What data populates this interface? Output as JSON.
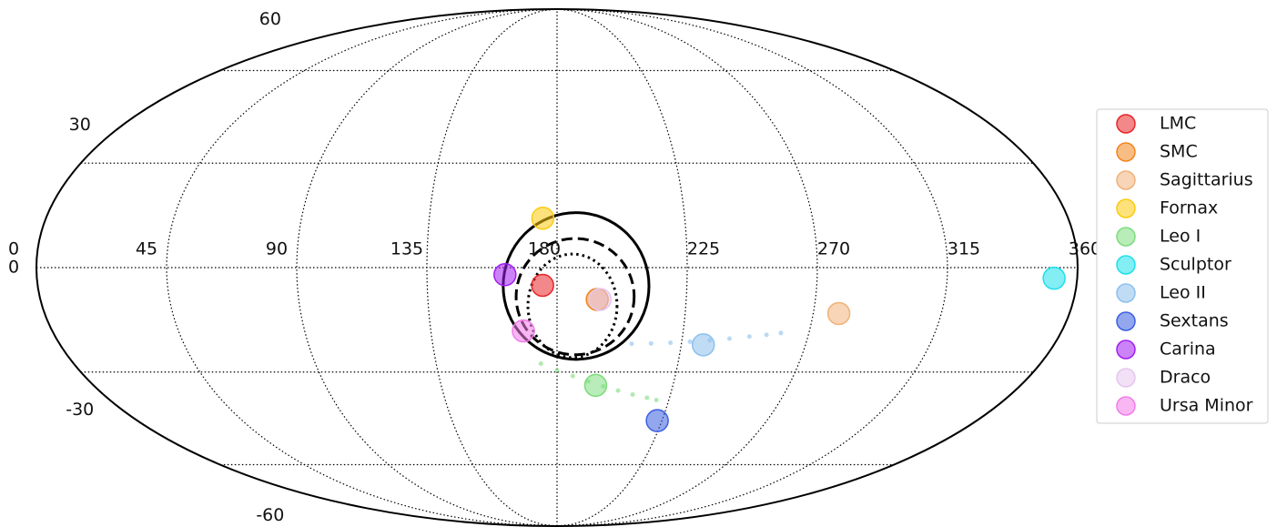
{
  "chart_data": {
    "type": "scatter",
    "projection": "mollweide",
    "xlim": [
      0,
      360
    ],
    "ylim": [
      -90,
      90
    ],
    "xticks": [
      0,
      45,
      90,
      135,
      180,
      225,
      270,
      315,
      360
    ],
    "yticks": [
      -60,
      -30,
      0,
      30,
      60
    ],
    "grid": true,
    "legend": "right",
    "series": [
      {
        "name": "LMC",
        "color": "#e8262a",
        "x": [
          175
        ],
        "values": [
          -5
        ]
      },
      {
        "name": "SMC",
        "color": "#f0861e",
        "x": [
          194
        ],
        "values": [
          -9
        ]
      },
      {
        "name": "Sagittarius",
        "color": "#f0b27a",
        "x": [
          279
        ],
        "values": [
          -13
        ]
      },
      {
        "name": "Fornax",
        "color": "#fcca10",
        "x": [
          175
        ],
        "values": [
          14
        ]
      },
      {
        "name": "Leo I",
        "color": "#7ddc7d",
        "x": [
          195
        ],
        "values": [
          -34
        ],
        "trail_x": [
          174,
          180,
          186,
          192,
          198,
          204,
          210,
          216,
          220
        ],
        "trail_y": [
          -27.5,
          -29.5,
          -31.2,
          -32.8,
          -34.3,
          -35.6,
          -36.8,
          -37.8,
          -38.5
        ]
      },
      {
        "name": "Sculptor",
        "color": "#1ee0ea",
        "x": [
          352
        ],
        "values": [
          -3
        ]
      },
      {
        "name": "Leo II",
        "color": "#8cc0ec",
        "x": [
          233
        ],
        "values": [
          -22
        ],
        "trail_x": [
          207,
          214,
          221,
          228,
          235,
          242,
          249,
          255,
          260
        ],
        "trail_y": [
          -21.7,
          -21.6,
          -21.4,
          -21.1,
          -20.7,
          -20.2,
          -19.6,
          -19.1,
          -18.6
        ]
      },
      {
        "name": "Sextans",
        "color": "#3a5fe0",
        "x": [
          223
        ],
        "values": [
          -45
        ]
      },
      {
        "name": "Carina",
        "color": "#a21ef2",
        "x": [
          162
        ],
        "values": [
          -2
        ]
      },
      {
        "name": "Draco",
        "color": "#e6c6ef",
        "x": [
          195
        ],
        "values": [
          -9
        ]
      },
      {
        "name": "Ursa Minor",
        "color": "#f27cea",
        "x": [
          168
        ],
        "values": [
          -18
        ]
      }
    ],
    "regions": [
      {
        "style": "solid",
        "lon": 186.6,
        "lat": -5.2,
        "rlon": 25.2,
        "rlat": 20.7
      },
      {
        "style": "dashed",
        "lon": 186.3,
        "lat": -8.2,
        "rlon": 20.4,
        "rlat": 16.4
      },
      {
        "style": "dotted",
        "lon": 185.4,
        "lat": -10.8,
        "rlon": 15.4,
        "rlat": 14.6
      }
    ]
  }
}
